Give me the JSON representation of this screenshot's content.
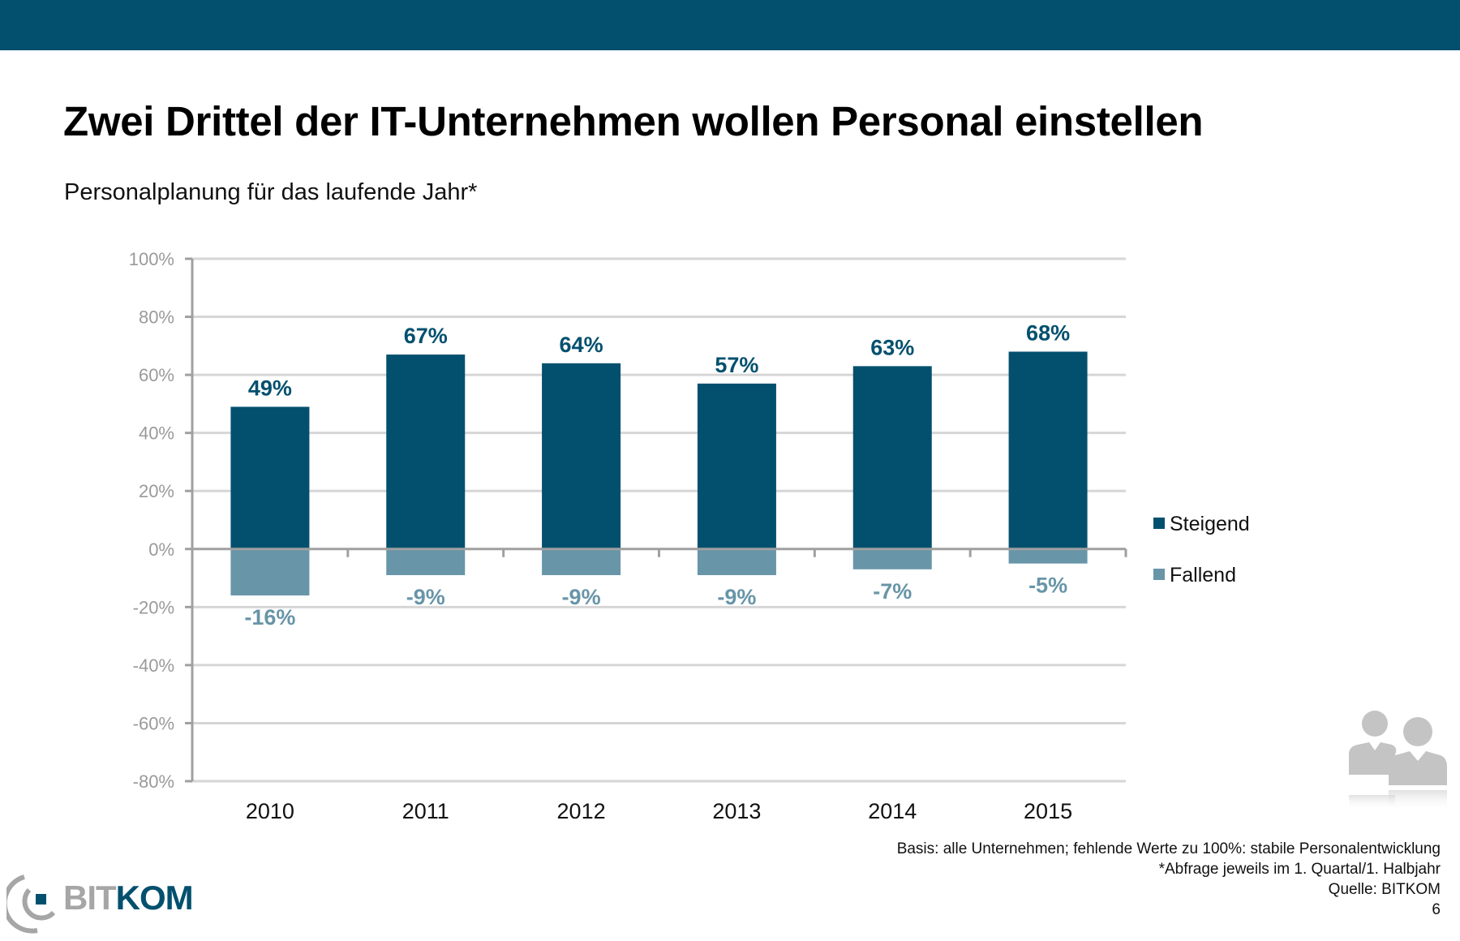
{
  "header": {
    "title": "Zwei Drittel der IT-Unternehmen wollen Personal einstellen",
    "subtitle": "Personalplanung für das laufende Jahr*"
  },
  "colors": {
    "brand": "#03506e",
    "steigend": "#03506e",
    "fallend": "#6895a8",
    "axis": "#a0a0a0",
    "grid": "#d6d6d6",
    "tick_text": "#9a9a9a"
  },
  "chart_data": {
    "type": "bar",
    "title": "Personalplanung für das laufende Jahr*",
    "xlabel": "",
    "ylabel": "",
    "categories": [
      "2010",
      "2011",
      "2012",
      "2013",
      "2014",
      "2015"
    ],
    "series": [
      {
        "name": "Steigend",
        "values": [
          49,
          67,
          64,
          57,
          63,
          68
        ],
        "labels": [
          "49%",
          "67%",
          "64%",
          "57%",
          "63%",
          "68%"
        ]
      },
      {
        "name": "Fallend",
        "values": [
          -16,
          -9,
          -9,
          -9,
          -7,
          -5
        ],
        "labels": [
          "-16%",
          "-9%",
          "-9%",
          "-9%",
          "-7%",
          "-5%"
        ]
      }
    ],
    "ylim": [
      -80,
      100
    ],
    "yticks": [
      100,
      80,
      60,
      40,
      20,
      0,
      -20,
      -40,
      -60,
      -80
    ],
    "ytick_labels": [
      "100%",
      "80%",
      "60%",
      "40%",
      "20%",
      "0%",
      "-20%",
      "-40%",
      "-60%",
      "-80%"
    ],
    "grid": true,
    "legend": {
      "position": "right",
      "entries": [
        "Steigend",
        "Fallend"
      ]
    },
    "stacked": "overlay-positive-negative"
  },
  "footnotes": {
    "basis": "Basis: alle Unternehmen; fehlende Werte zu 100%: stabile Personalentwicklung",
    "abfrage": "*Abfrage jeweils im 1. Quartal/1. Halbjahr",
    "quelle": "Quelle: BITKOM",
    "page_number": "6"
  },
  "logo": {
    "part1": "BIT",
    "part2": "KOM"
  },
  "decor": {
    "people_icon": "people-icon"
  }
}
